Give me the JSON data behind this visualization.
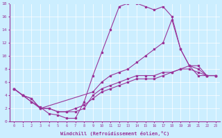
{
  "xlabel": "Windchill (Refroidissement éolien,°C)",
  "ylabel": "",
  "bg_color": "#cceeff",
  "line_color": "#993399",
  "xlim": [
    -0.5,
    23.5
  ],
  "ylim": [
    0,
    18
  ],
  "xticks": [
    0,
    1,
    2,
    3,
    4,
    5,
    6,
    7,
    8,
    9,
    10,
    11,
    12,
    13,
    14,
    15,
    16,
    17,
    18,
    19,
    20,
    21,
    22,
    23
  ],
  "yticks": [
    0,
    2,
    4,
    6,
    8,
    10,
    12,
    14,
    16,
    18
  ],
  "series": [
    {
      "x": [
        0,
        1,
        2,
        3,
        4,
        5,
        6,
        7,
        8,
        9,
        10,
        11,
        12,
        13,
        14,
        15,
        16,
        17,
        18,
        19,
        20,
        21,
        22,
        23
      ],
      "y": [
        5,
        4,
        3,
        2.2,
        1.2,
        1.0,
        0.5,
        0.5,
        3,
        7,
        10.5,
        14,
        17.5,
        18,
        18,
        17.5,
        17,
        17.5,
        16,
        11,
        8.5,
        7,
        7,
        7
      ]
    },
    {
      "x": [
        0,
        1,
        2,
        3,
        9,
        10,
        11,
        12,
        13,
        14,
        15,
        16,
        17,
        18,
        19,
        20,
        21,
        22,
        23
      ],
      "y": [
        5,
        4,
        3.5,
        2,
        4.5,
        6,
        7,
        7.5,
        8,
        9,
        10,
        11,
        12,
        15.5,
        11,
        8.5,
        8,
        7,
        7
      ]
    },
    {
      "x": [
        0,
        1,
        2,
        3,
        4,
        5,
        6,
        7,
        8,
        9,
        10,
        11,
        12,
        13,
        14,
        15,
        16,
        17,
        18,
        19,
        20,
        21,
        22,
        23
      ],
      "y": [
        5,
        4,
        3.5,
        2,
        2,
        1.5,
        1.5,
        1.5,
        2,
        4,
        5,
        5.5,
        6,
        6.5,
        7,
        7,
        7,
        7.5,
        7.5,
        8,
        8.5,
        8.5,
        7,
        7
      ]
    },
    {
      "x": [
        0,
        1,
        2,
        3,
        4,
        5,
        6,
        7,
        8,
        9,
        10,
        11,
        12,
        13,
        14,
        15,
        16,
        17,
        18,
        19,
        20,
        21,
        22,
        23
      ],
      "y": [
        5,
        4,
        3,
        2,
        2,
        1.5,
        1.5,
        2,
        2.5,
        3.5,
        4.5,
        5,
        5.5,
        6,
        6.5,
        6.5,
        6.5,
        7,
        7.5,
        8,
        8,
        7.5,
        7,
        7
      ]
    }
  ]
}
